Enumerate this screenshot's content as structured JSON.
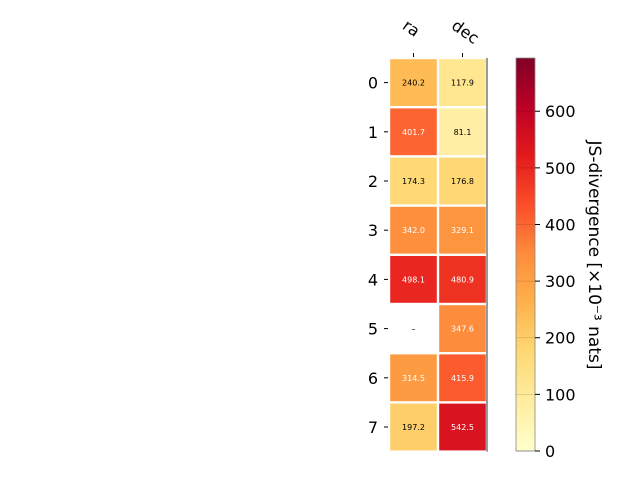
{
  "chart_data": {
    "type": "heatmap",
    "columns": [
      "ra",
      "dec"
    ],
    "rows": [
      "0",
      "1",
      "2",
      "3",
      "4",
      "5",
      "6",
      "7"
    ],
    "values": [
      [
        240.2,
        117.9
      ],
      [
        401.7,
        81.1
      ],
      [
        174.3,
        176.8
      ],
      [
        342.0,
        329.1
      ],
      [
        498.1,
        480.9
      ],
      [
        null,
        347.6
      ],
      [
        314.5,
        415.9
      ],
      [
        197.2,
        542.5
      ]
    ],
    "cell_labels": [
      [
        "240.2",
        "117.9"
      ],
      [
        "401.7",
        "81.1"
      ],
      [
        "174.3",
        "176.8"
      ],
      [
        "342.0",
        "329.1"
      ],
      [
        "498.1",
        "480.9"
      ],
      [
        "–",
        "347.6"
      ],
      [
        "314.5",
        "415.9"
      ],
      [
        "197.2",
        "542.5"
      ]
    ],
    "colorbar": {
      "label": "JS-divergence [×10⁻³ nats]",
      "range": [
        0,
        694
      ],
      "ticks": [
        0,
        100,
        200,
        300,
        400,
        500,
        600
      ],
      "tick_labels": [
        "0",
        "100",
        "200",
        "300",
        "400",
        "500",
        "600"
      ],
      "colormap": "YlOrRd"
    },
    "grid": false
  }
}
